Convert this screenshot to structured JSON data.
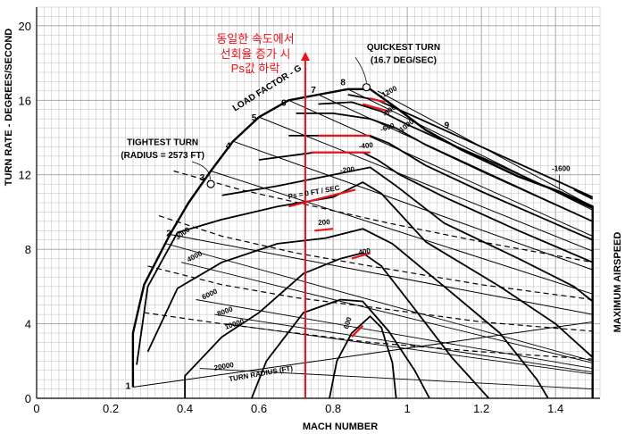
{
  "chart_data": {
    "type": "line",
    "title": "",
    "xlabel": "MACH NUMBER",
    "ylabel": "TURN RATE - DEGREES/SECOND",
    "right_label": "MAXIMUM AIRSPEED",
    "xlim": [
      0,
      1.52
    ],
    "ylim": [
      0,
      21
    ],
    "xticks": [
      0,
      0.2,
      0.4,
      0.6,
      0.8,
      1,
      1.2,
      1.4
    ],
    "yticks": [
      0,
      4,
      8,
      12,
      16,
      20
    ],
    "grid": true,
    "envelope": {
      "name": "",
      "points": [
        [
          0.26,
          0.6
        ],
        [
          0.26,
          3.5
        ],
        [
          0.29,
          6.1
        ],
        [
          0.36,
          8.8
        ],
        [
          0.41,
          10.5
        ],
        [
          0.47,
          12.2
        ],
        [
          0.53,
          13.8
        ],
        [
          0.6,
          15.1
        ],
        [
          0.68,
          16.0
        ],
        [
          0.76,
          16.3
        ],
        [
          0.84,
          16.6
        ],
        [
          0.9,
          16.6
        ],
        [
          0.97,
          15.6
        ],
        [
          1.05,
          14.4
        ],
        [
          1.15,
          13.3
        ],
        [
          1.3,
          11.9
        ],
        [
          1.41,
          11.1
        ],
        [
          1.5,
          10.3
        ],
        [
          1.5,
          0
        ]
      ]
    },
    "load_factor_label": "LOAD FACTOR - G",
    "load_factor_lines": [
      {
        "name": "1",
        "points": [
          [
            0.26,
            0.6
          ],
          [
            1.5,
            4.1
          ]
        ]
      },
      {
        "name": "2",
        "points": [
          [
            0.36,
            8.8
          ],
          [
            1.5,
            4.5
          ]
        ]
      },
      {
        "name": "3",
        "points": [
          [
            0.47,
            12.2
          ],
          [
            1.5,
            5.6
          ]
        ]
      },
      {
        "name": "4",
        "points": [
          [
            0.53,
            13.8
          ],
          [
            1.5,
            6.9
          ]
        ]
      },
      {
        "name": "5",
        "points": [
          [
            0.6,
            15.1
          ],
          [
            1.5,
            7.9
          ]
        ]
      },
      {
        "name": "6",
        "points": [
          [
            0.68,
            16.0
          ],
          [
            1.5,
            8.7
          ]
        ]
      },
      {
        "name": "7",
        "points": [
          [
            0.76,
            16.3
          ],
          [
            1.5,
            9.5
          ]
        ]
      },
      {
        "name": "8",
        "points": [
          [
            0.84,
            16.6
          ],
          [
            1.5,
            10.1
          ]
        ]
      },
      {
        "name": "9",
        "points": [
          [
            0.92,
            16.5
          ],
          [
            1.5,
            10.3
          ]
        ]
      }
    ],
    "load_factor_labels": [
      {
        "text": "1",
        "x": 0.24,
        "y": 0.5
      },
      {
        "text": "2",
        "x": 0.35,
        "y": 8.7
      },
      {
        "text": "3",
        "x": 0.44,
        "y": 11.7
      },
      {
        "text": "4",
        "x": 0.51,
        "y": 13.4
      },
      {
        "text": "5",
        "x": 0.58,
        "y": 14.9
      },
      {
        "text": "6",
        "x": 0.66,
        "y": 15.7
      },
      {
        "text": "7",
        "x": 0.74,
        "y": 16.4
      },
      {
        "text": "8",
        "x": 0.82,
        "y": 16.8
      },
      {
        "text": "9",
        "x": 1.1,
        "y": 14.5
      }
    ],
    "turn_radius_label": "TURN RADIUS (FT)",
    "turn_radius_lines": [
      {
        "name": "3000",
        "points": [
          [
            0.35,
            8.3
          ],
          [
            1.5,
            2.0
          ]
        ]
      },
      {
        "name": "4000",
        "points": [
          [
            0.39,
            7.3
          ],
          [
            1.5,
            1.9
          ]
        ]
      },
      {
        "name": "6000",
        "points": [
          [
            0.43,
            5.3
          ],
          [
            1.5,
            1.6
          ]
        ]
      },
      {
        "name": "8000",
        "points": [
          [
            0.48,
            4.5
          ],
          [
            1.5,
            1.4
          ]
        ]
      },
      {
        "name": "10000",
        "points": [
          [
            0.51,
            4.0
          ],
          [
            1.5,
            1.3
          ]
        ]
      },
      {
        "name": "20000",
        "points": [
          [
            0.44,
            1.6
          ],
          [
            1.5,
            0.5
          ]
        ]
      }
    ],
    "turn_radius_labels": [
      {
        "text": "3000",
        "x": 0.38,
        "y": 8.5
      },
      {
        "text": "4000",
        "x": 0.41,
        "y": 7.3
      },
      {
        "text": "6000",
        "x": 0.45,
        "y": 5.3
      },
      {
        "text": "8000",
        "x": 0.49,
        "y": 4.4
      },
      {
        "text": "10000",
        "x": 0.51,
        "y": 3.7
      },
      {
        "text": "20000",
        "x": 0.48,
        "y": 1.5
      },
      {
        "text": "TURN RADIUS (FT)",
        "x": 0.52,
        "y": 0.9
      }
    ],
    "dashed_lines": [
      {
        "name": "",
        "points": [
          [
            0.37,
            12.2
          ],
          [
            0.55,
            11.2
          ],
          [
            0.75,
            10.3
          ],
          [
            0.95,
            9.4
          ],
          [
            1.2,
            8.4
          ],
          [
            1.5,
            7.3
          ]
        ]
      },
      {
        "name": "",
        "points": [
          [
            0.33,
            9.8
          ],
          [
            0.5,
            8.7
          ],
          [
            0.7,
            7.8
          ],
          [
            0.9,
            7.1
          ],
          [
            1.2,
            6.1
          ],
          [
            1.5,
            5.3
          ]
        ]
      },
      {
        "name": "",
        "points": [
          [
            0.3,
            7.1
          ],
          [
            0.5,
            6.1
          ],
          [
            0.7,
            5.4
          ],
          [
            0.9,
            4.9
          ],
          [
            1.2,
            4.1
          ],
          [
            1.5,
            3.6
          ]
        ]
      },
      {
        "name": "",
        "points": [
          [
            0.29,
            4.6
          ],
          [
            0.5,
            4.0
          ],
          [
            0.7,
            3.5
          ],
          [
            0.9,
            3.0
          ],
          [
            1.2,
            2.5
          ],
          [
            1.5,
            2.1
          ]
        ]
      }
    ],
    "ps_curves": [
      {
        "name": "Ps = 0 FT / SEC",
        "points": [
          [
            0.27,
            1.8
          ],
          [
            0.3,
            6.0
          ],
          [
            0.38,
            8.9
          ],
          [
            0.5,
            9.6
          ],
          [
            0.65,
            10.3
          ],
          [
            0.8,
            10.8
          ],
          [
            0.88,
            11.6
          ],
          [
            0.93,
            11.0
          ],
          [
            1.05,
            8.4
          ],
          [
            1.25,
            6.0
          ],
          [
            1.4,
            4.0
          ],
          [
            1.5,
            2.2
          ]
        ]
      },
      {
        "name": "-200",
        "points": [
          [
            0.5,
            10.9
          ],
          [
            0.65,
            11.4
          ],
          [
            0.8,
            12.0
          ],
          [
            0.9,
            12.4
          ],
          [
            0.97,
            11.4
          ],
          [
            1.1,
            9.4
          ],
          [
            1.3,
            7.5
          ],
          [
            1.45,
            6.0
          ],
          [
            1.5,
            5.2
          ]
        ]
      },
      {
        "name": "-400",
        "points": [
          [
            0.6,
            12.8
          ],
          [
            0.75,
            13.2
          ],
          [
            0.88,
            13.2
          ],
          [
            0.92,
            12.8
          ],
          [
            0.98,
            12.0
          ],
          [
            1.1,
            10.8
          ],
          [
            1.3,
            9.0
          ],
          [
            1.5,
            7.3
          ]
        ]
      },
      {
        "name": "-600",
        "points": [
          [
            0.68,
            14.1
          ],
          [
            0.8,
            14.1
          ],
          [
            0.9,
            14.1
          ],
          [
            0.95,
            13.7
          ],
          [
            1.05,
            12.5
          ],
          [
            1.2,
            11.1
          ],
          [
            1.35,
            9.8
          ],
          [
            1.5,
            8.5
          ]
        ]
      },
      {
        "name": "-800",
        "points": [
          [
            0.7,
            15.3
          ],
          [
            0.8,
            15.3
          ],
          [
            0.9,
            15.0
          ],
          [
            0.97,
            14.5
          ],
          [
            1.05,
            13.6
          ],
          [
            1.2,
            12.2
          ],
          [
            1.5,
            9.5
          ]
        ]
      },
      {
        "name": "-1000",
        "points": [
          [
            0.76,
            15.8
          ],
          [
            0.85,
            15.9
          ],
          [
            0.93,
            15.4
          ],
          [
            1.0,
            14.7
          ],
          [
            1.1,
            13.8
          ],
          [
            1.25,
            12.5
          ],
          [
            1.5,
            10.2
          ]
        ]
      },
      {
        "name": "-1200",
        "points": [
          [
            0.84,
            16.3
          ],
          [
            0.92,
            16.0
          ],
          [
            1.0,
            15.3
          ],
          [
            1.2,
            13.5
          ],
          [
            1.5,
            10.8
          ]
        ]
      },
      {
        "name": "-1600",
        "points": [
          [
            1.45,
            11.2
          ],
          [
            1.5,
            10.7
          ]
        ]
      },
      {
        "name": "200",
        "points": [
          [
            0.3,
            2.5
          ],
          [
            0.38,
            5.9
          ],
          [
            0.5,
            7.3
          ],
          [
            0.65,
            8.3
          ],
          [
            0.78,
            8.6
          ],
          [
            0.88,
            9.1
          ],
          [
            0.96,
            8.3
          ],
          [
            1.1,
            6.0
          ],
          [
            1.25,
            3.5
          ],
          [
            1.35,
            1.0
          ],
          [
            1.38,
            0
          ]
        ]
      },
      {
        "name": "400",
        "points": [
          [
            0.4,
            0
          ],
          [
            0.4,
            1.2
          ],
          [
            0.5,
            3.3
          ],
          [
            0.6,
            4.6
          ],
          [
            0.72,
            6.7
          ],
          [
            0.82,
            7.5
          ],
          [
            0.88,
            7.8
          ],
          [
            0.93,
            7.1
          ],
          [
            1.02,
            4.8
          ],
          [
            1.12,
            2.2
          ],
          [
            1.22,
            0
          ]
        ]
      },
      {
        "name": "600",
        "points": [
          [
            0.58,
            0
          ],
          [
            0.62,
            2.0
          ],
          [
            0.72,
            4.6
          ],
          [
            0.82,
            5.3
          ],
          [
            0.88,
            5.2
          ],
          [
            0.95,
            3.6
          ],
          [
            1.02,
            1.5
          ],
          [
            1.06,
            0
          ]
        ]
      },
      {
        "name": "800",
        "points": [
          [
            0.79,
            0
          ],
          [
            0.81,
            2.0
          ],
          [
            0.85,
            3.5
          ],
          [
            0.9,
            4.4
          ],
          [
            0.93,
            3.8
          ],
          [
            0.96,
            1.9
          ],
          [
            0.97,
            0
          ]
        ]
      }
    ],
    "ps_labels": [
      {
        "text": "Ps = 0 FT / SEC",
        "x": 0.68,
        "y": 10.7
      },
      {
        "text": "-200",
        "x": 0.82,
        "y": 12.1
      },
      {
        "text": "-400",
        "x": 0.87,
        "y": 13.4
      },
      {
        "text": "-600",
        "x": 0.93,
        "y": 14.3
      },
      {
        "text": "-800",
        "x": 0.94,
        "y": 15.1
      },
      {
        "text": "-1000",
        "x": 0.98,
        "y": 14.2
      },
      {
        "text": "-1200",
        "x": 0.93,
        "y": 16.1
      },
      {
        "text": "-1600",
        "x": 1.39,
        "y": 12.2
      },
      {
        "text": "200",
        "x": 0.76,
        "y": 9.3
      },
      {
        "text": "400",
        "x": 0.87,
        "y": 7.7
      },
      {
        "text": "600",
        "x": 0.84,
        "y": 3.7
      }
    ],
    "red_segments": [
      [
        [
          0.68,
          10.3
        ],
        [
          0.86,
          11.2
        ]
      ],
      [
        [
          0.75,
          9.0
        ],
        [
          0.8,
          9.1
        ]
      ],
      [
        [
          0.74,
          13.2
        ],
        [
          0.9,
          13.2
        ]
      ],
      [
        [
          0.76,
          14.1
        ],
        [
          0.9,
          14.1
        ]
      ],
      [
        [
          0.88,
          15.8
        ],
        [
          0.95,
          15.4
        ]
      ],
      [
        [
          0.9,
          16.1
        ],
        [
          0.94,
          15.9
        ]
      ],
      [
        [
          0.85,
          7.5
        ],
        [
          0.9,
          7.8
        ]
      ],
      [
        [
          0.85,
          3.3
        ],
        [
          0.88,
          3.9
        ]
      ]
    ],
    "vertical_marker": {
      "x": 0.725,
      "y_from": 0,
      "y_to": 18.6
    },
    "points": [
      {
        "name": "tightest",
        "x": 0.47,
        "y": 11.5
      },
      {
        "name": "quickest",
        "x": 0.89,
        "y": 16.7
      }
    ],
    "annotations": [
      {
        "text": "QUICKEST TURN",
        "x": 0.99,
        "y": 18.7
      },
      {
        "text": "(16.7 DEG/SEC)",
        "x": 0.99,
        "y": 18.0
      },
      {
        "text": "TIGHTEST TURN",
        "x": 0.34,
        "y": 13.6
      },
      {
        "text": "(RADIUS = 2573 FT)",
        "x": 0.34,
        "y": 12.9
      }
    ],
    "korean_note": [
      "동일한 속도에서",
      "선회율 증가 시",
      "Ps값 하락"
    ]
  },
  "colors": {
    "curve": "#000000",
    "red": "#e8141b",
    "grid": "#bdbdbd",
    "grid_minor": "#e3e3e3"
  }
}
